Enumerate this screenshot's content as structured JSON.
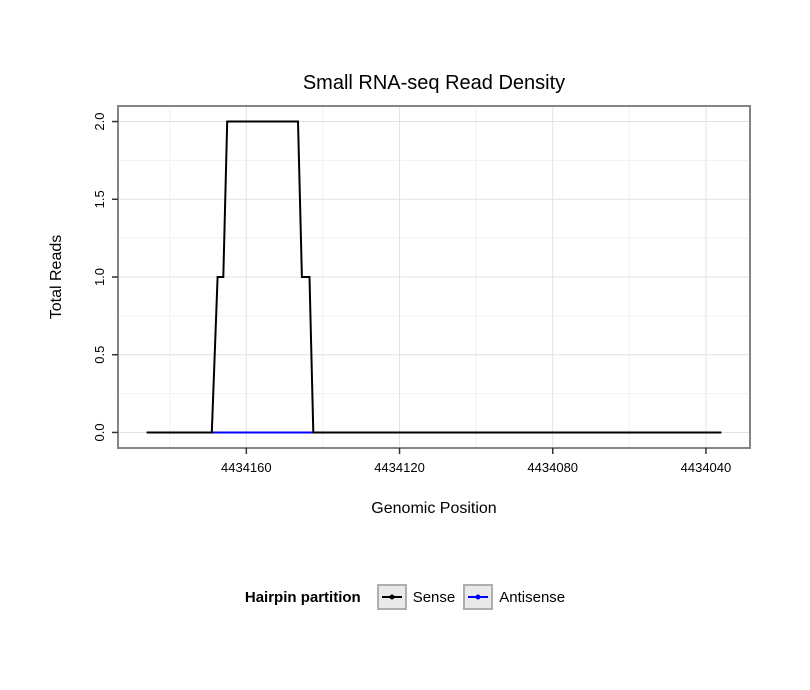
{
  "chart_data": {
    "type": "line",
    "title": "Small RNA-seq Read Density",
    "xlabel": "Genomic Position",
    "ylabel": "Total Reads",
    "x_ticks": [
      4434160,
      4434120,
      4434080,
      4434040
    ],
    "x_tick_labels": [
      "4434160",
      "4434120",
      "4434080",
      "4434040"
    ],
    "y_ticks": [
      0.0,
      0.5,
      1.0,
      1.5,
      2.0
    ],
    "y_tick_labels": [
      "0.0",
      "0.5",
      "1.0",
      "1.5",
      "2.0"
    ],
    "x_domain": [
      4434193.5,
      4434028.5
    ],
    "y_domain": [
      -0.1,
      2.1
    ],
    "x_axis_reversed": true,
    "grid": true,
    "panel_border_color": "#858585",
    "grid_major_color": "#e2e2e2",
    "grid_minor_color": "#f0f0f0",
    "tick_color": "#333333",
    "legend": {
      "title": "Hairpin partition",
      "position": "bottom"
    },
    "series": [
      {
        "name": "Sense",
        "color": "#000000",
        "points": [
          [
            4434186,
            0
          ],
          [
            4434169,
            0
          ],
          [
            4434167.5,
            1
          ],
          [
            4434166,
            1
          ],
          [
            4434165,
            2
          ],
          [
            4434146.5,
            2
          ],
          [
            4434145.5,
            1
          ],
          [
            4434143.5,
            1
          ],
          [
            4434142.5,
            0
          ],
          [
            4434036,
            0
          ]
        ]
      },
      {
        "name": "Antisense",
        "color": "#0000ff",
        "points": [
          [
            4434186,
            0
          ],
          [
            4434036,
            0
          ]
        ]
      }
    ]
  }
}
